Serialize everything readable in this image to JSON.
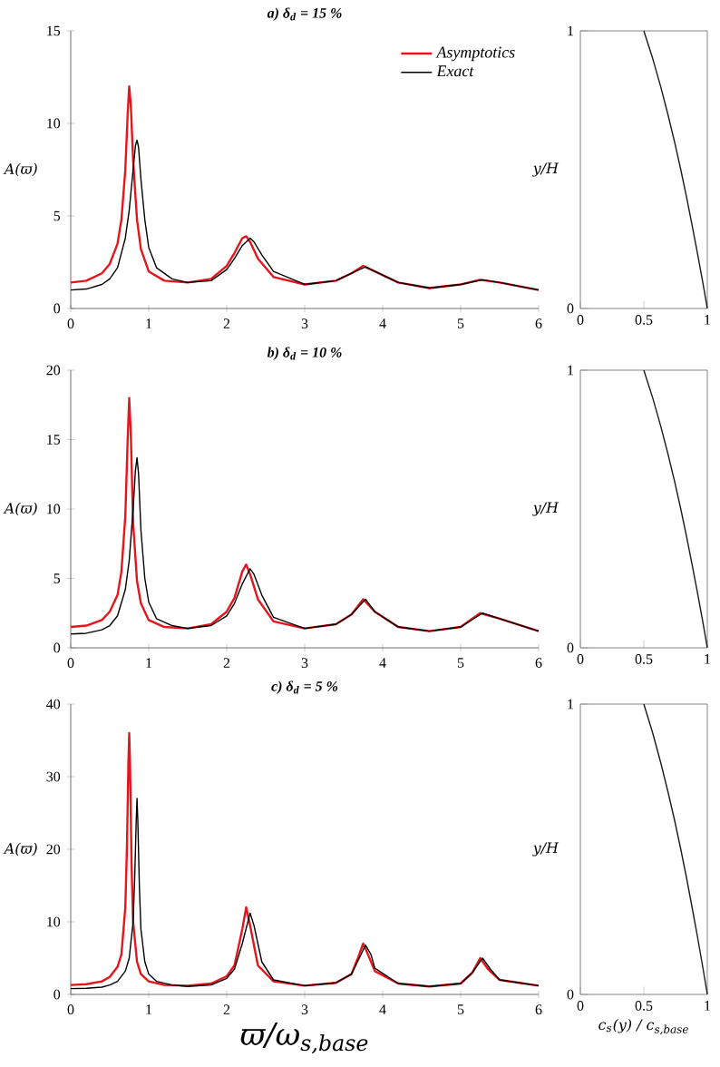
{
  "chart_data": [
    {
      "type": "line",
      "title": "a) δ$_{d}$ = 15 %",
      "ylabel": "A(ϖ)",
      "xlim": [
        0,
        6
      ],
      "ylim": [
        0,
        15
      ],
      "xticks": [
        0,
        1,
        2,
        3,
        4,
        5,
        6
      ],
      "yticks": [
        0,
        5,
        10,
        15
      ],
      "legend": "top right",
      "marker": "none",
      "line_style": "solid",
      "series": [
        {
          "name": "Asymptotics",
          "color": "#e8141c",
          "x": [
            0,
            0.2,
            0.4,
            0.5,
            0.6,
            0.65,
            0.7,
            0.73,
            0.75,
            0.77,
            0.8,
            0.85,
            0.9,
            1.0,
            1.2,
            1.5,
            1.8,
            2.0,
            2.1,
            2.2,
            2.25,
            2.3,
            2.4,
            2.6,
            3.0,
            3.4,
            3.6,
            3.75,
            3.9,
            4.2,
            4.6,
            5.0,
            5.25,
            5.5,
            6.0
          ],
          "values": [
            1.4,
            1.5,
            1.9,
            2.4,
            3.5,
            4.8,
            7.5,
            10.5,
            12.0,
            11.0,
            8.0,
            4.8,
            3.2,
            2.0,
            1.5,
            1.4,
            1.6,
            2.3,
            3.0,
            3.8,
            3.9,
            3.6,
            2.7,
            1.7,
            1.3,
            1.5,
            1.9,
            2.3,
            2.0,
            1.4,
            1.1,
            1.3,
            1.55,
            1.4,
            1.0
          ]
        },
        {
          "name": "Exact",
          "color": "#000000",
          "x": [
            0,
            0.2,
            0.4,
            0.5,
            0.6,
            0.7,
            0.75,
            0.8,
            0.83,
            0.85,
            0.87,
            0.9,
            0.95,
            1.0,
            1.1,
            1.3,
            1.5,
            1.8,
            2.0,
            2.1,
            2.2,
            2.3,
            2.35,
            2.45,
            2.6,
            3.0,
            3.4,
            3.6,
            3.78,
            3.9,
            4.2,
            4.6,
            5.0,
            5.28,
            5.5,
            6.0
          ],
          "values": [
            1.0,
            1.05,
            1.3,
            1.6,
            2.2,
            3.8,
            5.3,
            7.5,
            8.8,
            9.1,
            8.7,
            7.0,
            4.8,
            3.3,
            2.2,
            1.6,
            1.4,
            1.5,
            2.1,
            2.7,
            3.4,
            3.8,
            3.6,
            2.9,
            2.0,
            1.3,
            1.5,
            1.9,
            2.25,
            2.0,
            1.4,
            1.1,
            1.3,
            1.55,
            1.4,
            1.0
          ]
        }
      ]
    },
    {
      "type": "line",
      "ylabel": "y/H",
      "xlim": [
        0,
        1
      ],
      "ylim": [
        0,
        1
      ],
      "xticks": [
        0,
        0.5,
        1
      ],
      "yticks": [
        0,
        1
      ],
      "marker": "none",
      "line_style": "solid",
      "series": [
        {
          "color": "#1a1a1a",
          "x": [
            1.0,
            0.962,
            0.922,
            0.88,
            0.837,
            0.791,
            0.742,
            0.689,
            0.632,
            0.57,
            0.5
          ],
          "values": [
            0,
            0.1,
            0.2,
            0.3,
            0.4,
            0.5,
            0.6,
            0.7,
            0.8,
            0.9,
            1.0
          ]
        }
      ]
    },
    {
      "type": "line",
      "title": "b) δ$_{d}$ = 10 %",
      "ylabel": "A(ϖ)",
      "xlim": [
        0,
        6
      ],
      "ylim": [
        0,
        20
      ],
      "xticks": [
        0,
        1,
        2,
        3,
        4,
        5,
        6
      ],
      "yticks": [
        0,
        5,
        10,
        15,
        20
      ],
      "marker": "none",
      "line_style": "solid",
      "series": [
        {
          "color": "#e8141c",
          "x": [
            0,
            0.2,
            0.4,
            0.5,
            0.6,
            0.65,
            0.7,
            0.73,
            0.75,
            0.77,
            0.8,
            0.85,
            0.9,
            1.0,
            1.2,
            1.5,
            1.8,
            2.0,
            2.1,
            2.2,
            2.25,
            2.3,
            2.4,
            2.6,
            3.0,
            3.4,
            3.6,
            3.75,
            3.9,
            4.2,
            4.6,
            5.0,
            5.25,
            5.5,
            6.0
          ],
          "values": [
            1.5,
            1.6,
            2.0,
            2.6,
            3.8,
            5.5,
            9.5,
            15.0,
            18.0,
            15.5,
            9.0,
            4.8,
            3.2,
            2.0,
            1.5,
            1.4,
            1.7,
            2.6,
            3.6,
            5.5,
            6.0,
            5.3,
            3.5,
            1.9,
            1.4,
            1.7,
            2.4,
            3.5,
            2.6,
            1.5,
            1.2,
            1.5,
            2.5,
            2.1,
            1.2
          ]
        },
        {
          "color": "#000000",
          "x": [
            0,
            0.2,
            0.4,
            0.5,
            0.6,
            0.7,
            0.75,
            0.8,
            0.83,
            0.85,
            0.87,
            0.9,
            0.95,
            1.0,
            1.1,
            1.3,
            1.5,
            1.8,
            2.0,
            2.1,
            2.2,
            2.3,
            2.35,
            2.45,
            2.6,
            3.0,
            3.4,
            3.6,
            3.78,
            3.9,
            4.2,
            4.6,
            5.0,
            5.28,
            5.5,
            6.0
          ],
          "values": [
            1.0,
            1.05,
            1.3,
            1.6,
            2.3,
            4.2,
            6.3,
            10.0,
            12.8,
            13.7,
            12.5,
            8.5,
            5.0,
            3.3,
            2.1,
            1.6,
            1.4,
            1.6,
            2.3,
            3.2,
            4.6,
            5.7,
            5.3,
            3.8,
            2.2,
            1.4,
            1.7,
            2.4,
            3.5,
            2.6,
            1.5,
            1.2,
            1.5,
            2.5,
            2.1,
            1.2
          ]
        }
      ]
    },
    {
      "type": "line",
      "ylabel": "y/H",
      "xlim": [
        0,
        1
      ],
      "ylim": [
        0,
        1
      ],
      "xticks": [
        0,
        0.5,
        1
      ],
      "yticks": [
        0,
        1
      ],
      "marker": "none",
      "line_style": "solid",
      "series": [
        {
          "color": "#1a1a1a",
          "x": [
            1.0,
            0.962,
            0.922,
            0.88,
            0.837,
            0.791,
            0.742,
            0.689,
            0.632,
            0.57,
            0.5
          ],
          "values": [
            0,
            0.1,
            0.2,
            0.3,
            0.4,
            0.5,
            0.6,
            0.7,
            0.8,
            0.9,
            1.0
          ]
        }
      ]
    },
    {
      "type": "line",
      "title": "c) δ$_{d}$ = 5 %",
      "xlabel": "ϖ/ω$_{s,base}$",
      "ylabel": "A(ϖ)",
      "xlim": [
        0,
        6
      ],
      "ylim": [
        0,
        40
      ],
      "xticks": [
        0,
        1,
        2,
        3,
        4,
        5,
        6
      ],
      "yticks": [
        0,
        10,
        20,
        30,
        40
      ],
      "marker": "none",
      "line_style": "solid",
      "series": [
        {
          "color": "#e8141c",
          "x": [
            0,
            0.2,
            0.4,
            0.5,
            0.6,
            0.65,
            0.7,
            0.72,
            0.74,
            0.75,
            0.76,
            0.78,
            0.8,
            0.85,
            0.9,
            1.0,
            1.2,
            1.5,
            1.8,
            2.0,
            2.1,
            2.2,
            2.25,
            2.3,
            2.4,
            2.6,
            3.0,
            3.4,
            3.6,
            3.7,
            3.75,
            3.8,
            3.9,
            4.2,
            4.6,
            5.0,
            5.15,
            5.25,
            5.35,
            5.5,
            6.0
          ],
          "values": [
            1.3,
            1.4,
            1.8,
            2.4,
            3.8,
            5.5,
            12.0,
            20.0,
            32.0,
            36.0,
            32.0,
            18.0,
            10.0,
            4.5,
            2.8,
            1.8,
            1.3,
            1.2,
            1.5,
            2.5,
            4.0,
            9.0,
            12.0,
            9.5,
            4.0,
            1.8,
            1.2,
            1.6,
            2.8,
            5.5,
            7.0,
            5.8,
            3.2,
            1.5,
            1.1,
            1.5,
            3.0,
            5.0,
            3.5,
            2.0,
            1.2
          ]
        },
        {
          "color": "#000000",
          "x": [
            0,
            0.2,
            0.4,
            0.5,
            0.6,
            0.7,
            0.75,
            0.8,
            0.82,
            0.84,
            0.85,
            0.86,
            0.88,
            0.9,
            0.95,
            1.0,
            1.1,
            1.3,
            1.5,
            1.8,
            2.0,
            2.1,
            2.2,
            2.3,
            2.35,
            2.45,
            2.6,
            3.0,
            3.4,
            3.6,
            3.7,
            3.78,
            3.85,
            3.9,
            4.2,
            4.6,
            5.0,
            5.15,
            5.28,
            5.38,
            5.5,
            6.0
          ],
          "values": [
            0.8,
            0.85,
            1.0,
            1.3,
            1.8,
            3.2,
            5.0,
            10.0,
            16.0,
            24.0,
            27.0,
            24.0,
            15.0,
            9.0,
            4.5,
            2.8,
            1.8,
            1.3,
            1.1,
            1.3,
            2.2,
            3.5,
            7.0,
            11.2,
            9.5,
            4.5,
            2.0,
            1.2,
            1.6,
            2.8,
            5.0,
            6.8,
            5.5,
            3.6,
            1.5,
            1.1,
            1.5,
            3.0,
            5.0,
            3.5,
            2.0,
            1.2
          ]
        }
      ]
    },
    {
      "type": "line",
      "xlabel": "c$_{s}$(y) / c$_{s,base}$",
      "ylabel": "y/H",
      "xlim": [
        0,
        1
      ],
      "ylim": [
        0,
        1
      ],
      "xticks": [
        0,
        0.5,
        1
      ],
      "yticks": [
        0,
        1
      ],
      "marker": "none",
      "line_style": "solid",
      "series": [
        {
          "color": "#1a1a1a",
          "x": [
            1.0,
            0.962,
            0.922,
            0.88,
            0.837,
            0.791,
            0.742,
            0.689,
            0.632,
            0.57,
            0.5
          ],
          "values": [
            0,
            0.1,
            0.2,
            0.3,
            0.4,
            0.5,
            0.6,
            0.7,
            0.8,
            0.9,
            1.0
          ]
        }
      ]
    }
  ]
}
